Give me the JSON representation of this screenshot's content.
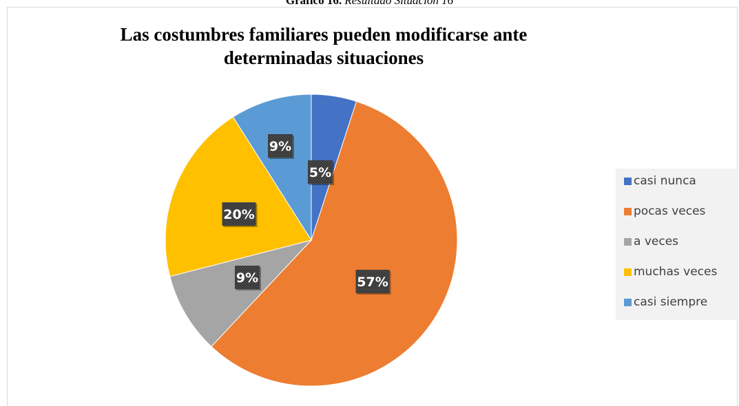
{
  "caption": {
    "bold": "Gráfico 16.",
    "italic": "Resultado Situación 16"
  },
  "chart_data": {
    "type": "pie",
    "title": "Las costumbres familiares pueden modificarse ante determinadas situaciones",
    "title_lines": [
      "Las costumbres familiares pueden modificarse ante",
      "determinadas situaciones"
    ],
    "categories": [
      "casi nunca",
      "pocas veces",
      "a veces",
      "muchas veces",
      "casi siempre"
    ],
    "values": [
      5,
      57,
      9,
      20,
      9
    ],
    "labels": [
      "5%",
      "57%",
      "9%",
      "20%",
      "9%"
    ],
    "colors": [
      "#4472c4",
      "#ed7d31",
      "#a5a5a5",
      "#ffc000",
      "#5b9bd5"
    ],
    "legend_position": "right"
  }
}
